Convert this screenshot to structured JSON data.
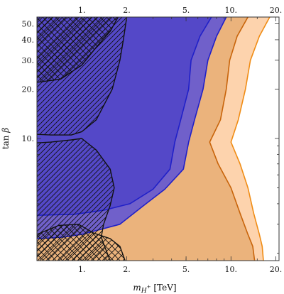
{
  "chart_data": {
    "type": "contour",
    "xlabel": "m_{H^+} [TeV]",
    "ylabel": "tan β",
    "x_scale": "log",
    "y_scale": "log",
    "xlim": [
      0.5,
      21
    ],
    "ylim": [
      1.8,
      55
    ],
    "grid": false,
    "x_ticks": [
      {
        "value": 1,
        "label": "1."
      },
      {
        "value": 2,
        "label": "2."
      },
      {
        "value": 5,
        "label": "5."
      },
      {
        "value": 10,
        "label": "10."
      },
      {
        "value": 20,
        "label": "20."
      }
    ],
    "y_ticks": [
      {
        "value": 10,
        "label": "10."
      },
      {
        "value": 20,
        "label": "20."
      },
      {
        "value": 30,
        "label": "30."
      },
      {
        "value": 40,
        "label": "40."
      },
      {
        "value": 50,
        "label": "50."
      }
    ],
    "colors": {
      "light_orange": "#fdd3ad",
      "orange": "#ebb37c",
      "light_blue": "#7060ca",
      "dark_blue": "#5448c8",
      "orange_line": "#f08c14",
      "dark_orange_line": "#c8640a",
      "blue_line": "#2020c8",
      "black_line": "#111111"
    },
    "series": [
      {
        "fill": "light_orange",
        "line": "orange_line",
        "boundary": [
          [
            18.2,
            55
          ],
          [
            15.5,
            42
          ],
          [
            13.5,
            30
          ],
          [
            12.5,
            20
          ],
          [
            11.2,
            13
          ],
          [
            10.0,
            9.5
          ],
          [
            11.5,
            7
          ],
          [
            13.0,
            5
          ],
          [
            14.2,
            3.5
          ],
          [
            15.5,
            2.6
          ],
          [
            16.2,
            2.2
          ],
          [
            16.5,
            1.8
          ]
        ]
      },
      {
        "fill": "orange",
        "line": "dark_orange_line",
        "boundary": [
          [
            13.0,
            55
          ],
          [
            11.0,
            42
          ],
          [
            9.8,
            30
          ],
          [
            9.3,
            20
          ],
          [
            8.5,
            13
          ],
          [
            7.2,
            9.5
          ],
          [
            8.2,
            7
          ],
          [
            10.0,
            5
          ],
          [
            11.5,
            3.5
          ],
          [
            13.0,
            2.6
          ],
          [
            14.0,
            2.2
          ],
          [
            14.4,
            1.8
          ]
        ]
      },
      {
        "fill": "light_blue",
        "line": "blue_line",
        "boundary": [
          [
            9.3,
            55
          ],
          [
            8.0,
            42
          ],
          [
            7.0,
            30
          ],
          [
            6.5,
            20
          ],
          [
            5.7,
            13
          ],
          [
            5.2,
            9.5
          ],
          [
            4.8,
            6.5
          ],
          [
            3.6,
            4.9
          ],
          [
            2.6,
            3.9
          ],
          [
            1.8,
            3.0
          ],
          [
            1.0,
            2.6
          ],
          [
            0.75,
            2.5
          ],
          [
            0.5,
            2.45
          ]
        ]
      },
      {
        "fill": "dark_blue",
        "line": "blue_line",
        "boundary": [
          [
            7.4,
            55
          ],
          [
            6.2,
            42
          ],
          [
            5.4,
            30
          ],
          [
            5.2,
            20
          ],
          [
            4.6,
            13
          ],
          [
            4.2,
            9.5
          ],
          [
            3.9,
            6.5
          ],
          [
            3.0,
            4.9
          ],
          [
            2.1,
            4.0
          ],
          [
            1.4,
            3.65
          ],
          [
            0.9,
            3.45
          ],
          [
            0.5,
            3.4
          ]
        ]
      },
      {
        "fill": "none",
        "line": "black_line",
        "hatch": "diagonal",
        "boundary_top": [
          [
            2.0,
            55
          ],
          [
            1.9,
            40
          ],
          [
            1.8,
            30
          ],
          [
            1.6,
            20
          ],
          [
            1.25,
            13
          ],
          [
            1.0,
            11
          ],
          [
            0.85,
            10.5
          ],
          [
            0.62,
            10.5
          ],
          [
            0.5,
            10.6
          ]
        ],
        "boundary_bottom": [
          [
            0.5,
            9.4
          ],
          [
            0.62,
            9.5
          ],
          [
            0.85,
            9.8
          ],
          [
            1.0,
            10.0
          ],
          [
            1.25,
            8.5
          ],
          [
            1.55,
            6.5
          ],
          [
            1.65,
            5.0
          ],
          [
            1.55,
            3.9
          ],
          [
            1.4,
            3.0
          ],
          [
            1.35,
            2.5
          ],
          [
            1.45,
            2.1
          ],
          [
            1.55,
            1.8
          ]
        ]
      },
      {
        "fill": "none",
        "line": "black_line",
        "hatch": "cross",
        "boundary_top": [
          [
            1.75,
            55
          ],
          [
            1.55,
            45
          ],
          [
            1.25,
            36
          ],
          [
            1.0,
            28
          ],
          [
            0.72,
            23
          ],
          [
            0.5,
            22
          ]
        ],
        "boundary_bottom": [
          [
            0.5,
            2.6
          ],
          [
            0.7,
            2.95
          ],
          [
            0.95,
            3.0
          ],
          [
            1.2,
            2.65
          ],
          [
            1.55,
            2.45
          ],
          [
            1.8,
            2.2
          ],
          [
            1.95,
            1.8
          ]
        ]
      }
    ]
  }
}
